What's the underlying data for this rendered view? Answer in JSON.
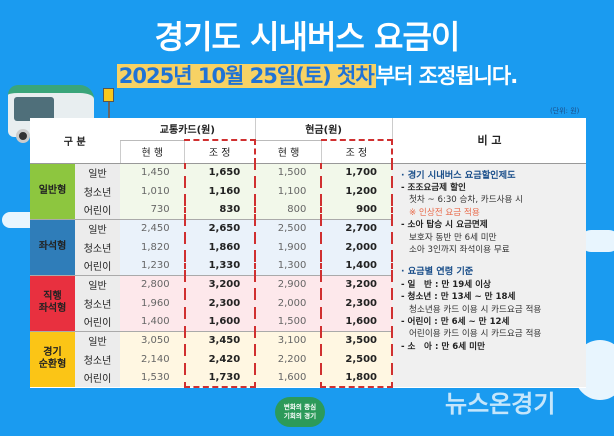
{
  "title": "경기도 시내버스 요금이",
  "subtitle": {
    "highlight": "2025년 10월 25일(토) 첫차",
    "rest": "부터 조정됩니다."
  },
  "unit": "(단위: 원)",
  "bus_stop_sign": "버스",
  "header": {
    "category": "구 분",
    "card": "교통카드(원)",
    "cash": "현금(원)",
    "remarks": "비 고",
    "current": "현 행",
    "adjusted": "조 정"
  },
  "groups": [
    {
      "name": "일반형",
      "color": "#8dc63f",
      "bg": "#f2f8ea",
      "rows": [
        [
          "일반",
          "1,450",
          "1,650",
          "1,500",
          "1,700"
        ],
        [
          "청소년",
          "1,010",
          "1,160",
          "1,100",
          "1,200"
        ],
        [
          "어린이",
          "730",
          "830",
          "800",
          "900"
        ]
      ]
    },
    {
      "name": "좌석형",
      "color": "#2f7db9",
      "bg": "#eaf2fa",
      "rows": [
        [
          "일반",
          "2,450",
          "2,650",
          "2,500",
          "2,700"
        ],
        [
          "청소년",
          "1,820",
          "1,860",
          "1,900",
          "2,000"
        ],
        [
          "어린이",
          "1,230",
          "1,330",
          "1,300",
          "1,400"
        ]
      ]
    },
    {
      "name": "직행\n좌석형",
      "color": "#e8303f",
      "bg": "#fde8eb",
      "rows": [
        [
          "일반",
          "2,800",
          "3,200",
          "2,900",
          "3,200"
        ],
        [
          "청소년",
          "1,960",
          "2,300",
          "2,000",
          "2,300"
        ],
        [
          "어린이",
          "1,400",
          "1,600",
          "1,500",
          "1,600"
        ]
      ]
    },
    {
      "name": "경기\n순환형",
      "color": "#fbc516",
      "bg": "#fff7e2",
      "rows": [
        [
          "일반",
          "3,050",
          "3,450",
          "3,100",
          "3,500"
        ],
        [
          "청소년",
          "2,140",
          "2,420",
          "2,200",
          "2,500"
        ],
        [
          "어린이",
          "1,530",
          "1,730",
          "1,600",
          "1,800"
        ]
      ]
    }
  ],
  "remarks": {
    "s1": "· 경기 시내버스 요금할인제도",
    "s1a": "- 조조요금제 할인",
    "s1a1": "첫차 ~ 6:30 승차, 카드사용 시",
    "s1a2": "※ 인상전 요금 적용",
    "s1b": "- 소아 탑승 시 요금면제",
    "s1b1": "보호자 동반 만 6세 미만",
    "s1b2": "소아 3인까지 좌석이용 무료",
    "s2": "· 요금별 연령 기준",
    "s2a": "- 일　반 : 만 19세 이상",
    "s2b": "- 청소년 : 만 13세 ~ 만 18세",
    "s2b1": "청소년용 카드 이용 시 카드요금 적용",
    "s2c": "- 어린이 : 만 6세 ~ 만 12세",
    "s2c1": "어린이용 카드 이용 시 카드요금 적용",
    "s2d": "- 소　아 : 만 6세 미만"
  },
  "logo": "변화의 중심\n기회의 경기",
  "watermark": "뉴스온경기"
}
